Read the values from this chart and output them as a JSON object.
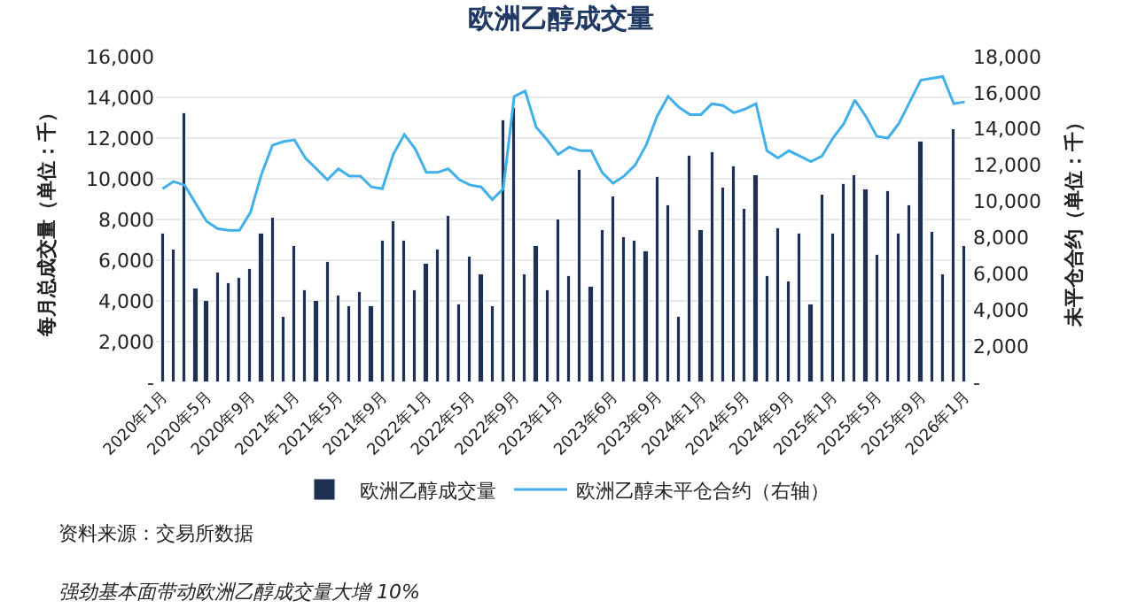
{
  "chart_data": {
    "type": "bar",
    "title": "欧洲乙醇成交量",
    "ylabel": "每月总成交量（单位：千）",
    "y2label": "未平仓合约（单位：千）",
    "categories": [
      "2020年1月",
      null,
      null,
      null,
      "2020年5月",
      null,
      null,
      null,
      "2020年9月",
      null,
      null,
      null,
      "2021年1月",
      null,
      null,
      null,
      "2021年5月",
      null,
      null,
      null,
      "2021年9月",
      null,
      null,
      null,
      "2022年1月",
      null,
      null,
      null,
      "2022年5月",
      null,
      null,
      null,
      "2022年9月",
      null,
      null,
      null,
      "2023年1月",
      null,
      null,
      null,
      null,
      "2023年6月",
      null,
      null,
      null,
      "2023年9月",
      null,
      null,
      null,
      "2024年1月",
      null,
      null,
      null,
      "2024年5月",
      null,
      null,
      null,
      "2024年9月",
      null,
      null,
      null,
      "2025年1月",
      null,
      null,
      null,
      "2025年5月",
      null,
      null,
      null,
      "2025年9月",
      null,
      null,
      null,
      "2026年1月"
    ],
    "series": [
      {
        "name": "欧洲乙醇成交量",
        "color": "#1f3050",
        "values": [
          7300,
          6500,
          13200,
          4600,
          4000,
          5400,
          4900,
          5100,
          5600,
          7300,
          8100,
          3200,
          6700,
          4500,
          4000,
          5900,
          4300,
          3700,
          4400,
          3700,
          7000,
          7900,
          7000,
          4500,
          5800,
          6500,
          8200,
          3800,
          6200,
          5300,
          3700,
          12900,
          13500,
          5300,
          6700,
          4500,
          8000,
          5200,
          10400,
          4700,
          7500,
          9100,
          7100,
          7000,
          6400,
          10100,
          8700,
          3200,
          11100,
          7500,
          11300,
          9600,
          10600,
          8500,
          10200,
          5200,
          7600,
          5000,
          7300,
          3800,
          9200,
          7300,
          9700,
          10200,
          9500,
          6300,
          9400,
          7300,
          8700,
          11800,
          7400,
          5300,
          12400,
          6700
        ]
      },
      {
        "name": "欧洲乙醇未平仓合约（右轴）",
        "type": "line",
        "axis": "y2",
        "color": "#41b0e8",
        "values": [
          10700,
          11100,
          10900,
          9900,
          8900,
          8500,
          8400,
          8400,
          9400,
          11500,
          13100,
          13300,
          13400,
          12400,
          11800,
          11200,
          11800,
          11400,
          11400,
          10800,
          10700,
          12600,
          13700,
          12900,
          11600,
          11600,
          11800,
          11200,
          10900,
          10800,
          10100,
          10700,
          15800,
          16100,
          14100,
          13400,
          12600,
          13000,
          12800,
          12800,
          11600,
          11000,
          11400,
          12000,
          13100,
          14700,
          15800,
          15200,
          14800,
          14800,
          15400,
          15300,
          14900,
          15100,
          15400,
          12800,
          12400,
          12800,
          12500,
          12200,
          12500,
          13500,
          14300,
          15600,
          14700,
          13600,
          13500,
          14300,
          15500,
          16700,
          16800,
          16900,
          15400,
          15500
        ]
      }
    ],
    "ylim": [
      0,
      16000
    ],
    "yticks": [
      {
        "value": 0,
        "label": "-"
      },
      {
        "value": 2000,
        "label": "2,000"
      },
      {
        "value": 4000,
        "label": "4,000"
      },
      {
        "value": 6000,
        "label": "6,000"
      },
      {
        "value": 8000,
        "label": "8,000"
      },
      {
        "value": 10000,
        "label": "10,000"
      },
      {
        "value": 12000,
        "label": "12,000"
      },
      {
        "value": 14000,
        "label": "14,000"
      },
      {
        "value": 16000,
        "label": "16,000"
      }
    ],
    "y2lim": [
      0,
      18000
    ],
    "y2ticks": [
      {
        "value": 0,
        "label": "-"
      },
      {
        "value": 2000,
        "label": "2,000"
      },
      {
        "value": 4000,
        "label": "4,000"
      },
      {
        "value": 6000,
        "label": "6,000"
      },
      {
        "value": 8000,
        "label": "8,000"
      },
      {
        "value": 10000,
        "label": "10,000"
      },
      {
        "value": 12000,
        "label": "12,000"
      },
      {
        "value": 14000,
        "label": "14,000"
      },
      {
        "value": 16000,
        "label": "16,000"
      },
      {
        "value": 18000,
        "label": "18,000"
      }
    ],
    "grid": "y",
    "legend": "bottom",
    "marker": "none",
    "line_style": "solid",
    "annotations": [
      "资料来源：交易所数据",
      "强劲基本面带动欧洲乙醇成交量大增 10%"
    ]
  }
}
